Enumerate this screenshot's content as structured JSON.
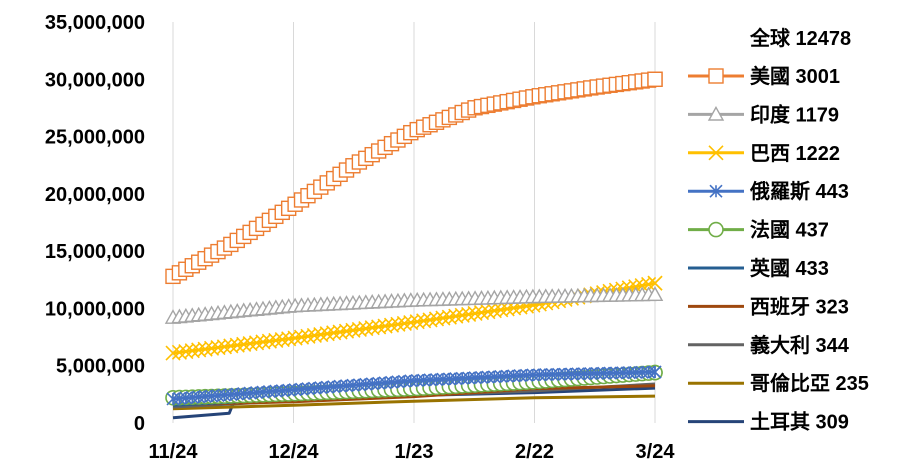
{
  "chart_data": {
    "type": "line",
    "title": "",
    "xlabel": "",
    "ylabel": "",
    "ylim": [
      0,
      35000000
    ],
    "y_ticks": [
      "0",
      "5,000,000",
      "10,000,000",
      "15,000,000",
      "20,000,000",
      "25,000,000",
      "30,000,000",
      "35,000,000"
    ],
    "y_tick_values": [
      0,
      5000000,
      10000000,
      15000000,
      20000000,
      25000000,
      30000000,
      35000000
    ],
    "x_ticks": [
      "11/24",
      "12/24",
      "1/23",
      "2/22",
      "3/24"
    ],
    "x_tick_days": [
      0,
      30,
      60,
      90,
      120
    ],
    "grid": "vertical",
    "legend_position": "right",
    "legend_header": "全球 12478",
    "series": [
      {
        "name": "美國 3001",
        "color": "#ED7D31",
        "marker": "square",
        "x": [
          "11/24",
          "12/8",
          "12/24",
          "1/8",
          "1/23",
          "2/7",
          "2/22",
          "3/9",
          "3/24"
        ],
        "values": [
          12800000,
          15500000,
          19000000,
          22500000,
          25500000,
          27500000,
          28500000,
          29300000,
          30000000
        ]
      },
      {
        "name": "印度 1179",
        "color": "#A5A5A5",
        "marker": "triangle",
        "x": [
          "11/24",
          "12/24",
          "1/23",
          "2/22",
          "3/24"
        ],
        "values": [
          9200000,
          10200000,
          10700000,
          11000000,
          11200000
        ]
      },
      {
        "name": "巴西 1222",
        "color": "#FFC000",
        "marker": "x",
        "x": [
          "11/24",
          "12/24",
          "1/23",
          "2/22",
          "3/24"
        ],
        "values": [
          6100000,
          7400000,
          8800000,
          10300000,
          12200000
        ]
      },
      {
        "name": "俄羅斯 443",
        "color": "#4472C4",
        "marker": "asterisk",
        "x": [
          "11/24",
          "12/24",
          "1/23",
          "2/22",
          "3/24"
        ],
        "values": [
          2100000,
          2900000,
          3700000,
          4200000,
          4450000
        ]
      },
      {
        "name": "法國 437",
        "color": "#70AD47",
        "marker": "circle",
        "x": [
          "11/24",
          "12/24",
          "1/23",
          "2/22",
          "3/24"
        ],
        "values": [
          2200000,
          2550000,
          3000000,
          3600000,
          4400000
        ]
      },
      {
        "name": "英國 433",
        "color": "#255E91",
        "marker": "none",
        "x": [
          "11/24",
          "12/8",
          "12/24",
          "1/8",
          "1/23",
          "2/7",
          "2/22",
          "3/9",
          "3/24"
        ],
        "values": [
          1550000,
          1800000,
          2300000,
          3000000,
          3600000,
          3950000,
          4100000,
          4200000,
          4300000
        ]
      },
      {
        "name": "西班牙 323",
        "color": "#9E480E",
        "marker": "none",
        "x": [
          "11/24",
          "12/24",
          "1/23",
          "2/22",
          "3/24"
        ],
        "values": [
          1600000,
          1850000,
          2300000,
          3000000,
          3250000
        ]
      },
      {
        "name": "義大利 344",
        "color": "#636363",
        "marker": "none",
        "x": [
          "11/24",
          "12/24",
          "1/23",
          "2/22",
          "3/24"
        ],
        "values": [
          1400000,
          1950000,
          2400000,
          2800000,
          3400000
        ]
      },
      {
        "name": "哥倫比亞 235",
        "color": "#997300",
        "marker": "none",
        "x": [
          "11/24",
          "12/24",
          "1/23",
          "2/22",
          "3/24"
        ],
        "values": [
          1250000,
          1550000,
          1900000,
          2200000,
          2350000
        ]
      },
      {
        "name": "土耳其 309",
        "color": "#264478",
        "marker": "none",
        "x": [
          "11/24",
          "12/8",
          "12/9",
          "12/24",
          "1/23",
          "2/22",
          "3/24"
        ],
        "values": [
          450000,
          850000,
          1750000,
          2050000,
          2400000,
          2650000,
          3050000
        ]
      }
    ]
  }
}
